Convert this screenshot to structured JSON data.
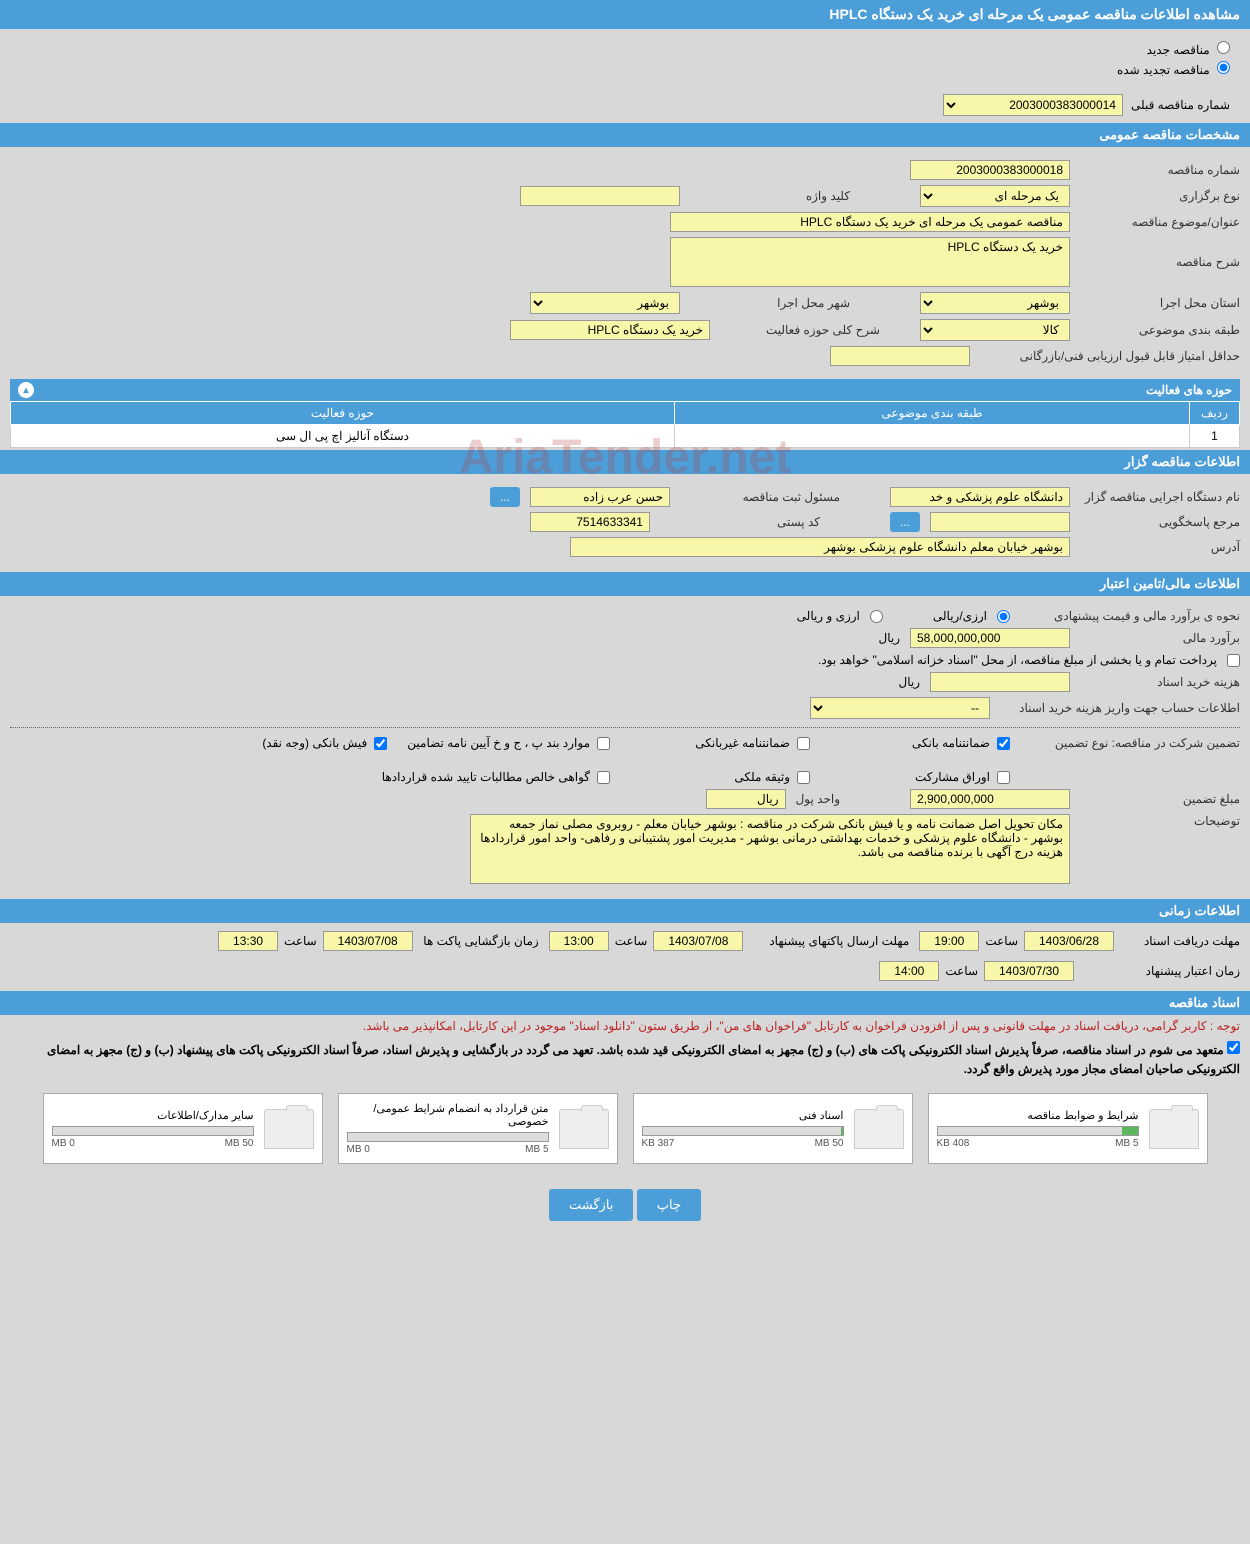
{
  "page_title": "مشاهده اطلاعات مناقصه عمومی یک مرحله ای خرید یک دستگاه HPLC",
  "tender_type": {
    "new_label": "مناقصه جدید",
    "renew_label": "مناقصه تجدید شده",
    "selected": "renew"
  },
  "prev_tender": {
    "label": "شماره مناقصه قبلی",
    "value": "2003000383000014"
  },
  "sections": {
    "general": "مشخصات مناقصه عمومی",
    "organizer": "اطلاعات مناقصه گزار",
    "financial": "اطلاعات مالی/تامین اعتبار",
    "timing": "اطلاعات زمانی",
    "docs": "اسناد مناقصه"
  },
  "general": {
    "tender_no_label": "شماره مناقصه",
    "tender_no": "2003000383000018",
    "hold_type_label": "نوع برگزاری",
    "hold_type": "یک مرحله ای",
    "keyword_label": "کلید واژه",
    "keyword": "",
    "subject_label": "عنوان/موضوع مناقصه",
    "subject": "مناقصه عمومی یک مرحله ای خرید یک دستگاه HPLC",
    "desc_label": "شرح مناقصه",
    "desc": "خرید یک دستگاه HPLC",
    "province_label": "استان محل اجرا",
    "province": "بوشهر",
    "city_label": "شهر محل اجرا",
    "city": "بوشهر",
    "category_label": "طبقه بندی موضوعی",
    "category": "کالا",
    "activity_scope_label": "شرح کلی حوزه فعالیت",
    "activity_scope": "خرید یک دستگاه HPLC",
    "min_score_label": "حداقل امتیاز قابل قبول ارزیابی فنی/بازرگانی",
    "min_score": ""
  },
  "activity_header": "حوزه های فعالیت",
  "activity_table": {
    "cols": [
      "ردیف",
      "طبقه بندی موضوعی",
      "حوزه فعالیت"
    ],
    "rows": [
      [
        "1",
        "",
        "دستگاه آنالیز اچ پی ال سی"
      ]
    ]
  },
  "organizer": {
    "org_label": "نام دستگاه اجرایی مناقصه گزار",
    "org": "دانشگاه علوم پزشکی و خد",
    "registrar_label": "مسئول ثبت مناقصه",
    "registrar": "حسن عرب زاده",
    "responder_label": "مرجع پاسخگویی",
    "responder": "",
    "postal_label": "کد پستی",
    "postal": "7514633341",
    "address_label": "آدرس",
    "address": "بوشهر خیابان معلم دانشگاه علوم پزشکی بوشهر",
    "ellipsis": "..."
  },
  "financial": {
    "estimate_method_label": "نحوه ی برآورد مالی و قیمت پیشنهادی",
    "rial_opt": "ارزی/ریالی",
    "currency_opt": "ارزی و ریالی",
    "estimate_label": "برآورد مالی",
    "estimate": "58,000,000,000",
    "rial_unit": "ریال",
    "treasury_note": "پرداخت تمام و یا بخشی از مبلغ مناقصه، از محل \"اسناد خزانه اسلامی\" خواهد بود.",
    "doc_fee_label": "هزینه خرید اسناد",
    "doc_fee": "",
    "account_info_label": "اطلاعات حساب جهت واریز هزینه خرید اسناد",
    "account_info": "--",
    "guarantee_type_label": "تضمین شرکت در مناقصه:    نوع تضمین",
    "chk_bank_guarantee": "ضمانتنامه بانکی",
    "chk_nonbank_guarantee": "ضمانتنامه غیربانکی",
    "chk_clause": "موارد بند پ ، ج و خ آیین نامه تضامین",
    "chk_cash": "فیش بانکی (وجه نقد)",
    "chk_securities": "اوراق مشارکت",
    "chk_property": "وثیقه ملکی",
    "chk_contract_claims": "گواهی خالص مطالبات تایید شده قراردادها",
    "guarantee_amount_label": "مبلغ تضمین",
    "guarantee_amount": "2,900,000,000",
    "unit_label": "واحد پول",
    "unit": "ریال",
    "notes_label": "توضیحات",
    "notes": "مکان تحویل اصل ضمانت نامه و یا فیش بانکی شرکت در مناقصه : بوشهر خیابان معلم - روبروی مصلی نماز جمعه بوشهر - دانشگاه علوم پزشکی و خدمات بهداشتی درمانی بوشهر - مدیریت امور پشتیبانی و رفاهی- واحد امور قراردادها\nهزینه درج آگهی با برنده مناقصه می باشد."
  },
  "timing": {
    "doc_deadline_label": "مهلت دریافت اسناد",
    "doc_deadline_date": "1403/06/28",
    "doc_deadline_time_label": "ساعت",
    "doc_deadline_time": "19:00",
    "packet_send_label": "مهلت ارسال پاکتهای پیشنهاد",
    "packet_send_date": "1403/07/08",
    "packet_send_time": "13:00",
    "open_label": "زمان بازگشایی پاکت ها",
    "open_date": "1403/07/08",
    "open_time": "13:30",
    "validity_label": "زمان اعتبار پیشنهاد",
    "validity_date": "1403/07/30",
    "validity_time": "14:00"
  },
  "docs_note_red": "توجه : کاربر گرامی، دریافت اسناد در مهلت قانونی و پس از افزودن فراخوان به کارتابل \"فراخوان های من\"، از طریق ستون \"دانلود اسناد\" موجود در این کارتابل، امکانپذیر می باشد.",
  "docs_note_black": "متعهد می شوم در اسناد مناقصه، صرفاً پذیرش اسناد الکترونیکی پاکت های (ب) و (ج) مجهز به امضای الکترونیکی قید شده باشد. تعهد می گردد در بازگشایی و پذیرش اسناد، صرفاً اسناد الکترونیکی پاکت های پیشنهاد (ب) و (ج) مجهز به امضای الکترونیکی صاحبان امضای مجاز مورد پذیرش واقع گردد.",
  "documents": [
    {
      "title": "شرایط و ضوابط مناقصه",
      "used": "408 KB",
      "total": "5 MB",
      "pct": 8
    },
    {
      "title": "اسناد فنی",
      "used": "387 KB",
      "total": "50 MB",
      "pct": 1
    },
    {
      "title": "متن قرارداد به انضمام شرایط عمومی/خصوصی",
      "used": "0 MB",
      "total": "5 MB",
      "pct": 0
    },
    {
      "title": "سایر مدارک/اطلاعات",
      "used": "0 MB",
      "total": "50 MB",
      "pct": 0
    }
  ],
  "buttons": {
    "print": "چاپ",
    "back": "بازگشت"
  },
  "watermark": "AriaTender.net",
  "colors": {
    "header_blue": "#4c9ed9",
    "yellow_bg": "#f8f6a8",
    "page_bg": "#d8d8d8"
  }
}
